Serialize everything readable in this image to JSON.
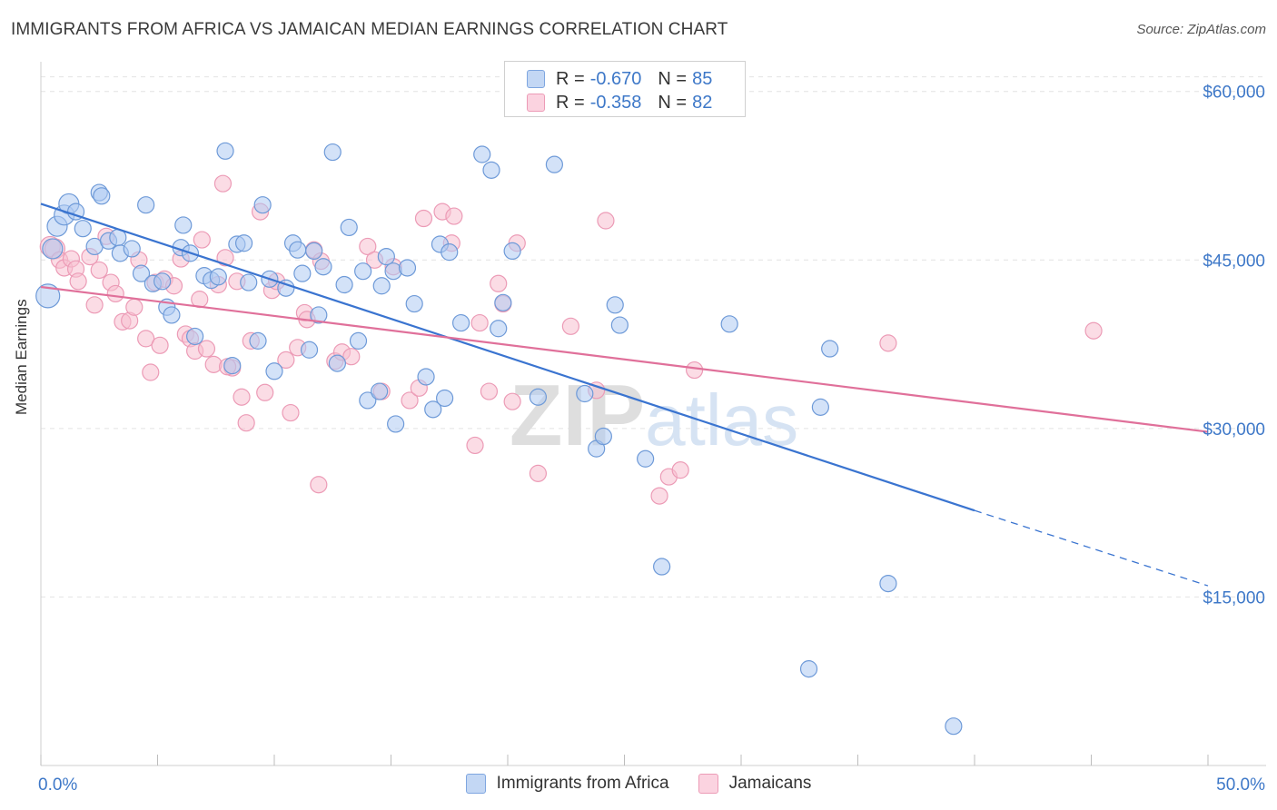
{
  "title": "IMMIGRANTS FROM AFRICA VS JAMAICAN MEDIAN EARNINGS CORRELATION CHART",
  "source": "Source: ZipAtlas.com",
  "watermark": "ZIPatlas",
  "colors": {
    "blue": "#3a74d0",
    "pink": "#e0709a",
    "blue_fill": "#aecbf2",
    "pink_fill": "#f7bfd0",
    "axis_text": "#3e78c8"
  },
  "legend_top": [
    {
      "r_label": "R =",
      "r_value": "-0.670",
      "n_label": "N =",
      "n_value": "85"
    },
    {
      "r_label": "R =",
      "r_value": "-0.358",
      "n_label": "N =",
      "n_value": "82"
    }
  ],
  "legend_bottom": [
    "Immigrants from Africa",
    "Jamaicans"
  ],
  "chart_data": {
    "type": "scatter",
    "xlabel": "",
    "ylabel": "Median Earnings",
    "xlim": [
      0,
      50
    ],
    "ylim": [
      0,
      62000
    ],
    "x_tick_labels": [
      "0.0%",
      "50.0%"
    ],
    "y_ticks": [
      15000,
      30000,
      45000,
      60000
    ],
    "y_tick_labels": [
      "$15,000",
      "$30,000",
      "$45,000",
      "$60,000"
    ],
    "legend_position": "top-center",
    "grid": true,
    "series": [
      {
        "name": "Immigrants from Africa",
        "color": "#3a74d0",
        "trend": {
          "x": [
            0,
            40
          ],
          "y": [
            50000,
            22700
          ],
          "dashed_to": [
            50,
            16000
          ]
        },
        "points": [
          [
            0.3,
            41800
          ],
          [
            0.5,
            46000
          ],
          [
            0.7,
            48000
          ],
          [
            1.0,
            49000
          ],
          [
            1.2,
            50000
          ],
          [
            1.5,
            49300
          ],
          [
            1.8,
            47800
          ],
          [
            2.3,
            46200
          ],
          [
            2.5,
            51000
          ],
          [
            2.6,
            50700
          ],
          [
            2.9,
            46700
          ],
          [
            3.3,
            47000
          ],
          [
            3.4,
            45600
          ],
          [
            3.9,
            46000
          ],
          [
            4.3,
            43800
          ],
          [
            4.5,
            49900
          ],
          [
            4.8,
            42900
          ],
          [
            5.2,
            43100
          ],
          [
            5.4,
            40800
          ],
          [
            5.6,
            40100
          ],
          [
            6.0,
            46100
          ],
          [
            6.1,
            48100
          ],
          [
            6.4,
            45600
          ],
          [
            6.6,
            38200
          ],
          [
            7.0,
            43600
          ],
          [
            7.3,
            43200
          ],
          [
            7.6,
            43500
          ],
          [
            7.9,
            54700
          ],
          [
            8.2,
            35600
          ],
          [
            8.4,
            46400
          ],
          [
            8.7,
            46500
          ],
          [
            8.9,
            43000
          ],
          [
            9.3,
            37800
          ],
          [
            9.5,
            49900
          ],
          [
            9.8,
            43300
          ],
          [
            10.0,
            35100
          ],
          [
            10.5,
            42500
          ],
          [
            10.8,
            46500
          ],
          [
            11.0,
            45900
          ],
          [
            11.2,
            43800
          ],
          [
            11.5,
            37000
          ],
          [
            11.7,
            45800
          ],
          [
            11.9,
            40100
          ],
          [
            12.1,
            44400
          ],
          [
            12.5,
            54600
          ],
          [
            12.7,
            35800
          ],
          [
            13.0,
            42800
          ],
          [
            13.2,
            47900
          ],
          [
            13.6,
            37800
          ],
          [
            13.8,
            44000
          ],
          [
            14.0,
            32500
          ],
          [
            14.5,
            33300
          ],
          [
            14.6,
            42700
          ],
          [
            14.8,
            45300
          ],
          [
            15.1,
            44000
          ],
          [
            15.2,
            30400
          ],
          [
            15.7,
            44300
          ],
          [
            16.0,
            41100
          ],
          [
            16.5,
            34600
          ],
          [
            16.8,
            31700
          ],
          [
            17.1,
            46400
          ],
          [
            17.3,
            32700
          ],
          [
            17.5,
            45700
          ],
          [
            18.0,
            39400
          ],
          [
            18.9,
            54400
          ],
          [
            19.3,
            53000
          ],
          [
            19.6,
            38900
          ],
          [
            19.8,
            41200
          ],
          [
            20.2,
            45800
          ],
          [
            21.3,
            32800
          ],
          [
            22.0,
            53500
          ],
          [
            23.3,
            33100
          ],
          [
            23.8,
            28200
          ],
          [
            24.1,
            29300
          ],
          [
            24.6,
            41000
          ],
          [
            24.8,
            39200
          ],
          [
            25.9,
            27300
          ],
          [
            26.6,
            17700
          ],
          [
            29.5,
            39300
          ],
          [
            32.9,
            8600
          ],
          [
            33.4,
            31900
          ],
          [
            33.8,
            37100
          ],
          [
            36.3,
            16200
          ],
          [
            39.1,
            3500
          ],
          [
            20.7,
            23000
          ]
        ]
      },
      {
        "name": "Jamaicans",
        "color": "#e0709a",
        "trend": {
          "x": [
            0,
            50
          ],
          "y": [
            42600,
            29700
          ]
        },
        "points": [
          [
            0.4,
            46200
          ],
          [
            0.6,
            46000
          ],
          [
            0.8,
            45000
          ],
          [
            1.0,
            44300
          ],
          [
            1.3,
            45100
          ],
          [
            1.5,
            44200
          ],
          [
            1.6,
            43100
          ],
          [
            2.1,
            45300
          ],
          [
            2.3,
            41000
          ],
          [
            2.5,
            44100
          ],
          [
            2.8,
            47100
          ],
          [
            3.0,
            43000
          ],
          [
            3.2,
            42000
          ],
          [
            3.5,
            39500
          ],
          [
            3.8,
            39600
          ],
          [
            4.0,
            40800
          ],
          [
            4.2,
            45000
          ],
          [
            4.5,
            38000
          ],
          [
            4.7,
            35000
          ],
          [
            4.9,
            43000
          ],
          [
            5.1,
            37400
          ],
          [
            5.3,
            43300
          ],
          [
            5.7,
            42700
          ],
          [
            6.0,
            45100
          ],
          [
            6.2,
            38400
          ],
          [
            6.4,
            38000
          ],
          [
            6.6,
            36900
          ],
          [
            6.8,
            41500
          ],
          [
            7.1,
            37100
          ],
          [
            7.4,
            35700
          ],
          [
            7.6,
            42800
          ],
          [
            7.8,
            51800
          ],
          [
            7.9,
            45200
          ],
          [
            8.2,
            35400
          ],
          [
            8.4,
            43100
          ],
          [
            8.6,
            32800
          ],
          [
            8.8,
            30500
          ],
          [
            9.0,
            37800
          ],
          [
            9.4,
            49300
          ],
          [
            9.6,
            33200
          ],
          [
            9.9,
            42300
          ],
          [
            10.1,
            43100
          ],
          [
            10.5,
            36100
          ],
          [
            10.7,
            31400
          ],
          [
            11.0,
            37200
          ],
          [
            11.3,
            40300
          ],
          [
            11.4,
            39700
          ],
          [
            11.7,
            45900
          ],
          [
            11.9,
            25000
          ],
          [
            12.0,
            44900
          ],
          [
            12.6,
            36000
          ],
          [
            12.9,
            36800
          ],
          [
            13.3,
            36400
          ],
          [
            14.0,
            46200
          ],
          [
            14.3,
            45000
          ],
          [
            14.6,
            33300
          ],
          [
            15.1,
            44400
          ],
          [
            15.8,
            32500
          ],
          [
            16.2,
            33600
          ],
          [
            16.4,
            48700
          ],
          [
            17.2,
            49300
          ],
          [
            17.6,
            46500
          ],
          [
            17.7,
            48900
          ],
          [
            18.6,
            28500
          ],
          [
            18.8,
            39400
          ],
          [
            19.2,
            33300
          ],
          [
            19.6,
            42900
          ],
          [
            19.8,
            41100
          ],
          [
            20.2,
            32400
          ],
          [
            20.4,
            46500
          ],
          [
            21.3,
            26000
          ],
          [
            22.7,
            39100
          ],
          [
            23.8,
            33400
          ],
          [
            24.2,
            48500
          ],
          [
            26.5,
            24000
          ],
          [
            26.9,
            25700
          ],
          [
            27.4,
            26300
          ],
          [
            28.0,
            35200
          ],
          [
            36.3,
            37600
          ],
          [
            45.1,
            38700
          ],
          [
            8.0,
            35500
          ],
          [
            6.9,
            46800
          ]
        ]
      }
    ]
  }
}
